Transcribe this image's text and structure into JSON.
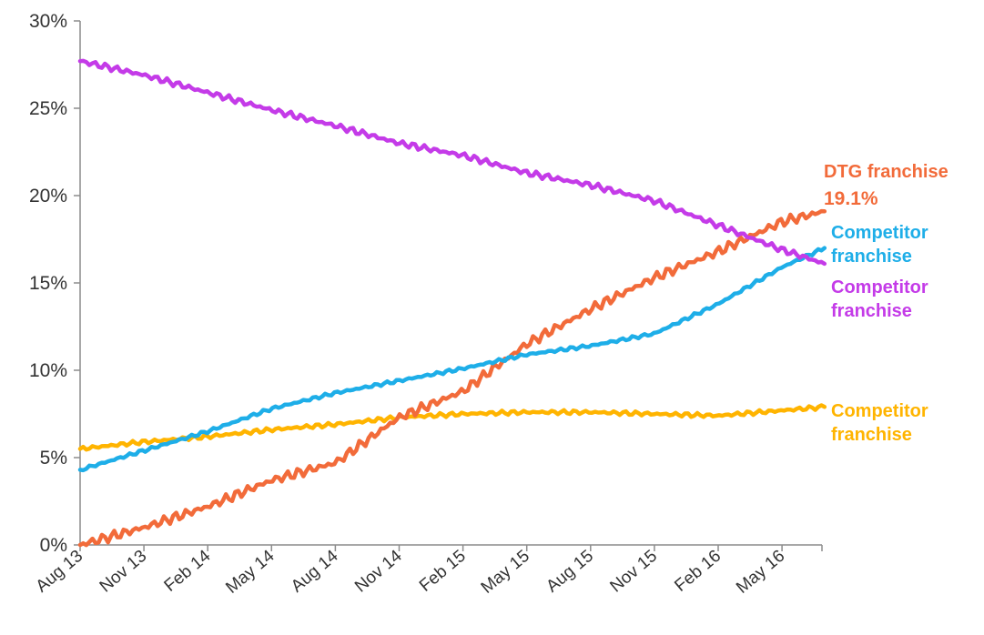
{
  "chart_data": {
    "type": "line",
    "title": "",
    "xlabel": "",
    "ylabel": "",
    "ylim": [
      0,
      30
    ],
    "yticks": [
      "0%",
      "5%",
      "10%",
      "15%",
      "20%",
      "25%",
      "30%"
    ],
    "ytick_values": [
      0,
      5,
      10,
      15,
      20,
      25,
      30
    ],
    "xticks": [
      "Aug 13",
      "Nov 13",
      "Feb 14",
      "May 14",
      "Aug 14",
      "Nov 14",
      "Feb 15",
      "May 15",
      "Aug 15",
      "Nov 15",
      "Feb 16",
      "May 16"
    ],
    "x_range_months": [
      0,
      35
    ],
    "grid": false,
    "legend": "inline-right",
    "series": [
      {
        "label_lines": [
          "DTG franchise",
          "19.1%"
        ],
        "color": "#F26B3A",
        "x": [
          0,
          3,
          6,
          9,
          12,
          15,
          18,
          21,
          24,
          27,
          30,
          33,
          35
        ],
        "values": [
          0.0,
          1.0,
          2.2,
          3.7,
          4.7,
          7.3,
          8.8,
          11.5,
          13.5,
          15.3,
          16.8,
          18.5,
          19.1
        ]
      },
      {
        "label_lines": [
          "Competitor",
          "franchise"
        ],
        "color": "#1EAEE8",
        "x": [
          0,
          3,
          6,
          9,
          12,
          15,
          18,
          21,
          24,
          27,
          30,
          33,
          35
        ],
        "values": [
          4.3,
          5.4,
          6.5,
          7.8,
          8.7,
          9.4,
          10.1,
          10.9,
          11.4,
          12.1,
          13.8,
          15.9,
          17.0
        ]
      },
      {
        "label_lines": [
          "Competitor",
          "franchise"
        ],
        "color": "#C43BE8",
        "x": [
          0,
          3,
          6,
          9,
          12,
          15,
          18,
          21,
          24,
          27,
          30,
          33,
          35
        ],
        "values": [
          27.7,
          26.9,
          25.9,
          24.9,
          24.0,
          23.0,
          22.3,
          21.3,
          20.6,
          19.7,
          18.3,
          16.9,
          16.1
        ]
      },
      {
        "label_lines": [
          "Competitor",
          "franchise"
        ],
        "color": "#FFB400",
        "x": [
          0,
          3,
          6,
          9,
          12,
          15,
          18,
          21,
          24,
          27,
          30,
          33,
          35
        ],
        "values": [
          5.5,
          5.9,
          6.2,
          6.6,
          6.9,
          7.3,
          7.5,
          7.6,
          7.6,
          7.5,
          7.4,
          7.7,
          7.9
        ]
      }
    ]
  }
}
